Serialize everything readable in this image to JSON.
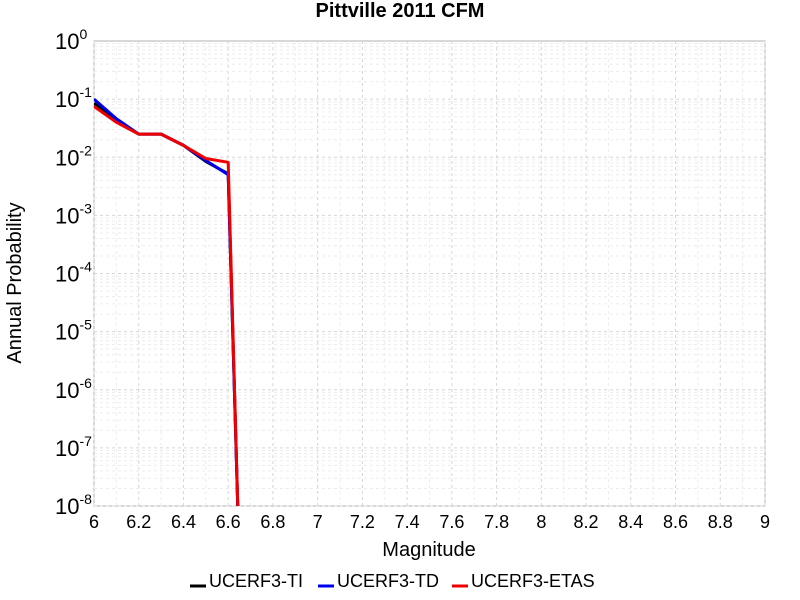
{
  "chart_data": {
    "type": "line",
    "title": "Pittville 2011 CFM",
    "xlabel": "Magnitude",
    "ylabel": "Annual Probability",
    "xlim": [
      6,
      9
    ],
    "ylim": [
      1e-08,
      1
    ],
    "yscale": "log",
    "grid": true,
    "legend_position": "bottom",
    "x_ticks": [
      "6",
      "6.2",
      "6.4",
      "6.6",
      "6.8",
      "7",
      "7.2",
      "7.4",
      "7.6",
      "7.8",
      "8",
      "8.2",
      "8.4",
      "8.6",
      "8.8",
      "9"
    ],
    "y_ticks": [
      {
        "base": "10",
        "exp": "0"
      },
      {
        "base": "10",
        "exp": "-1"
      },
      {
        "base": "10",
        "exp": "-2"
      },
      {
        "base": "10",
        "exp": "-3"
      },
      {
        "base": "10",
        "exp": "-4"
      },
      {
        "base": "10",
        "exp": "-5"
      },
      {
        "base": "10",
        "exp": "-6"
      },
      {
        "base": "10",
        "exp": "-7"
      },
      {
        "base": "10",
        "exp": "-8"
      }
    ],
    "series": [
      {
        "name": "UCERF3-TI",
        "color": "#000000",
        "x": [
          6.0,
          6.1,
          6.2,
          6.3,
          6.4,
          6.5,
          6.6,
          6.65
        ],
        "y": [
          0.085,
          0.042,
          0.025,
          0.025,
          0.016,
          0.0085,
          0.0052,
          1e-09
        ]
      },
      {
        "name": "UCERF3-TD",
        "color": "#0000ee",
        "x": [
          6.0,
          6.1,
          6.2,
          6.3,
          6.4,
          6.5,
          6.6,
          6.65
        ],
        "y": [
          0.1,
          0.046,
          0.025,
          0.025,
          0.016,
          0.0088,
          0.005,
          1e-09
        ]
      },
      {
        "name": "UCERF3-ETAS",
        "color": "#ee0000",
        "x": [
          6.0,
          6.1,
          6.2,
          6.3,
          6.4,
          6.5,
          6.6,
          6.65
        ],
        "y": [
          0.075,
          0.04,
          0.025,
          0.025,
          0.016,
          0.0095,
          0.0082,
          1e-09
        ]
      }
    ]
  }
}
